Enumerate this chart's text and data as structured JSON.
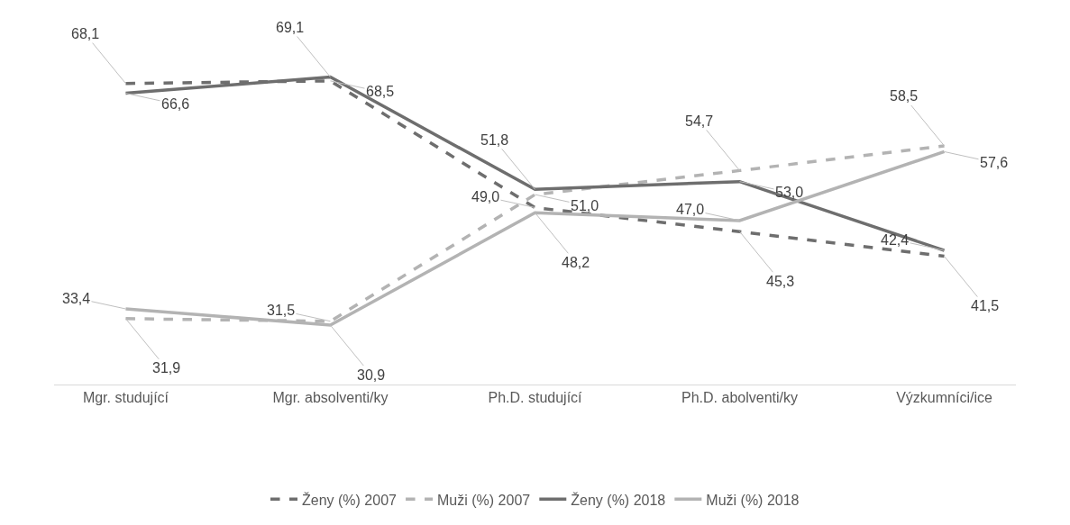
{
  "chart_data": {
    "type": "line",
    "categories": [
      "Mgr. studující",
      "Mgr. absolventi/ky",
      "Ph.D. studující",
      "Ph.D. abolventi/ky",
      "Výzkumníci/ice"
    ],
    "tick_labels": "x",
    "legend": "bottom",
    "marker": "none",
    "series": [
      {
        "name": "Ženy (%) 2007",
        "color": "#6e6e6e",
        "line_style": "dashed",
        "values": [
          68.1,
          68.5,
          49.0,
          45.3,
          41.5
        ],
        "value_labels": [
          "68,1",
          "68,5",
          "49,0",
          "45,3",
          "41,5"
        ]
      },
      {
        "name": "Muži (%) 2007",
        "color": "#b3b3b3",
        "line_style": "dashed",
        "values": [
          31.9,
          31.5,
          51.0,
          54.7,
          58.5
        ],
        "value_labels": [
          "31,9",
          "31,5",
          "51,0",
          "54,7",
          "58,5"
        ]
      },
      {
        "name": "Ženy (%) 2018",
        "color": "#6e6e6e",
        "line_style": "solid",
        "values": [
          66.6,
          69.1,
          51.8,
          53.0,
          42.4
        ],
        "value_labels": [
          "66,6",
          "69,1",
          "51,8",
          "53,0",
          "42,4"
        ]
      },
      {
        "name": "Muži (%) 2018",
        "color": "#b3b3b3",
        "line_style": "solid",
        "values": [
          33.4,
          30.9,
          48.2,
          47.0,
          57.6
        ],
        "value_labels": [
          "33,4",
          "30,9",
          "48,2",
          "47,0",
          "57,6"
        ]
      }
    ]
  }
}
